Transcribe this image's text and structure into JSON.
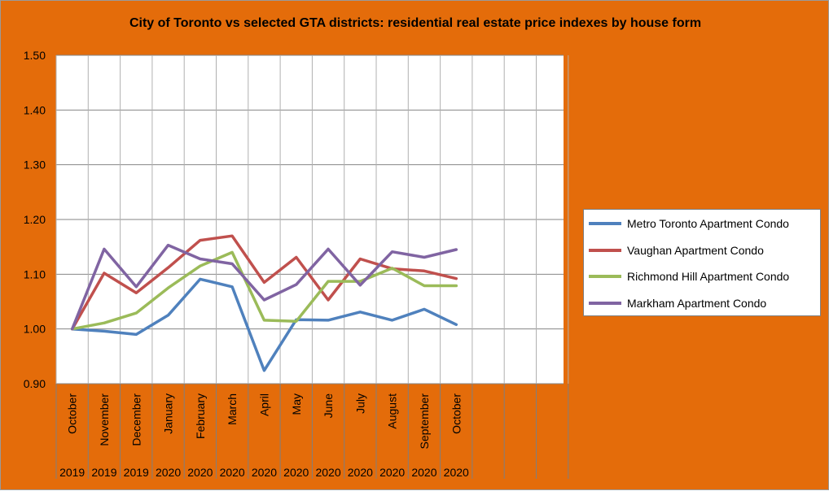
{
  "chart_data": {
    "type": "line",
    "title": "City of Toronto vs selected GTA districts: residential real estate price indexes by house form",
    "xlabel": "",
    "ylabel": "",
    "ylim": [
      0.9,
      1.5
    ],
    "y_ticks": [
      "0.90",
      "1.00",
      "1.10",
      "1.20",
      "1.30",
      "1.40",
      "1.50"
    ],
    "grid": true,
    "legend_position": "right",
    "categories": [
      "October 2019",
      "November 2019",
      "December 2019",
      "January 2020",
      "February 2020",
      "March 2020",
      "April 2020",
      "May 2020",
      "June 2020",
      "July 2020",
      "August 2020",
      "September 2020",
      "October 2020"
    ],
    "category_months": [
      "October",
      "November",
      "December",
      "January",
      "February",
      "March",
      "April",
      "May",
      "June",
      "July",
      "August",
      "September",
      "October"
    ],
    "category_years": [
      "2019",
      "2019",
      "2019",
      "2020",
      "2020",
      "2020",
      "2020",
      "2020",
      "2020",
      "2020",
      "2020",
      "2020",
      "2020"
    ],
    "series": [
      {
        "name": "Metro Toronto Apartment Condo",
        "color": "#4F81BD",
        "values": [
          1.0,
          0.996,
          0.99,
          1.025,
          1.091,
          1.077,
          0.924,
          1.017,
          1.016,
          1.031,
          1.016,
          1.036,
          1.008
        ]
      },
      {
        "name": "Vaughan Apartment Condo",
        "color": "#C0504D",
        "values": [
          1.0,
          1.102,
          1.066,
          1.112,
          1.162,
          1.17,
          1.085,
          1.131,
          1.053,
          1.128,
          1.11,
          1.106,
          1.092
        ]
      },
      {
        "name": "Richmond Hill Apartment Condo",
        "color": "#9BBB59",
        "values": [
          1.0,
          1.011,
          1.029,
          1.075,
          1.115,
          1.14,
          1.016,
          1.014,
          1.087,
          1.087,
          1.111,
          1.079,
          1.079
        ]
      },
      {
        "name": "Markham Apartment Condo",
        "color": "#8064A2",
        "values": [
          1.0,
          1.146,
          1.077,
          1.153,
          1.128,
          1.119,
          1.053,
          1.081,
          1.146,
          1.08,
          1.141,
          1.131,
          1.145
        ]
      }
    ]
  }
}
